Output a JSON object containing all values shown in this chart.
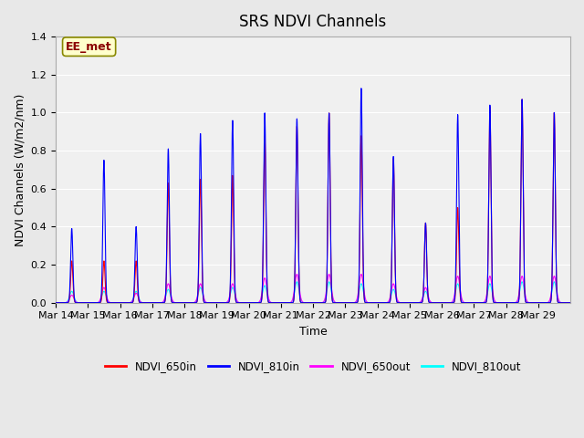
{
  "title": "SRS NDVI Channels",
  "ylabel": "NDVI Channels (W/m2/nm)",
  "xlabel": "Time",
  "annotation": "EE_met",
  "legend": [
    "NDVI_650in",
    "NDVI_810in",
    "NDVI_650out",
    "NDVI_810out"
  ],
  "legend_colors": [
    "red",
    "blue",
    "magenta",
    "cyan"
  ],
  "ylim": [
    0,
    1.4
  ],
  "background_color": "#e8e8e8",
  "plot_bg_color": "#f0f0f0",
  "tick_labels": [
    "Mar 14",
    "Mar 15",
    "Mar 16",
    "Mar 17",
    "Mar 18",
    "Mar 19",
    "Mar 20",
    "Mar 21",
    "Mar 22",
    "Mar 23",
    "Mar 24",
    "Mar 25",
    "Mar 26",
    "Mar 27",
    "Mar 28",
    "Mar 29"
  ],
  "num_days": 15,
  "samples_per_day": 200,
  "peak_vals_650in": [
    0.22,
    0.22,
    0.22,
    0.63,
    0.65,
    0.67,
    0.88,
    0.93,
    1.0,
    0.88,
    0.76,
    0.42,
    0.5,
    1.03,
    1.07,
    1.0
  ],
  "peak_vals_810in": [
    0.39,
    0.75,
    0.4,
    0.81,
    0.89,
    0.96,
    1.0,
    0.97,
    1.0,
    1.13,
    0.77,
    0.42,
    0.99,
    1.04,
    1.07,
    1.0
  ],
  "peak_vals_650out": [
    0.04,
    0.08,
    0.05,
    0.1,
    0.1,
    0.1,
    0.13,
    0.15,
    0.15,
    0.15,
    0.1,
    0.08,
    0.14,
    0.14,
    0.14,
    0.14
  ],
  "peak_vals_810out": [
    0.06,
    0.06,
    0.06,
    0.07,
    0.08,
    0.08,
    0.09,
    0.11,
    0.11,
    0.1,
    0.07,
    0.06,
    0.1,
    0.1,
    0.11,
    0.11
  ],
  "sigma_in": 0.034,
  "sigma_out": 0.065,
  "yticks": [
    0.0,
    0.2,
    0.4,
    0.6,
    0.8,
    1.0,
    1.2,
    1.4
  ]
}
